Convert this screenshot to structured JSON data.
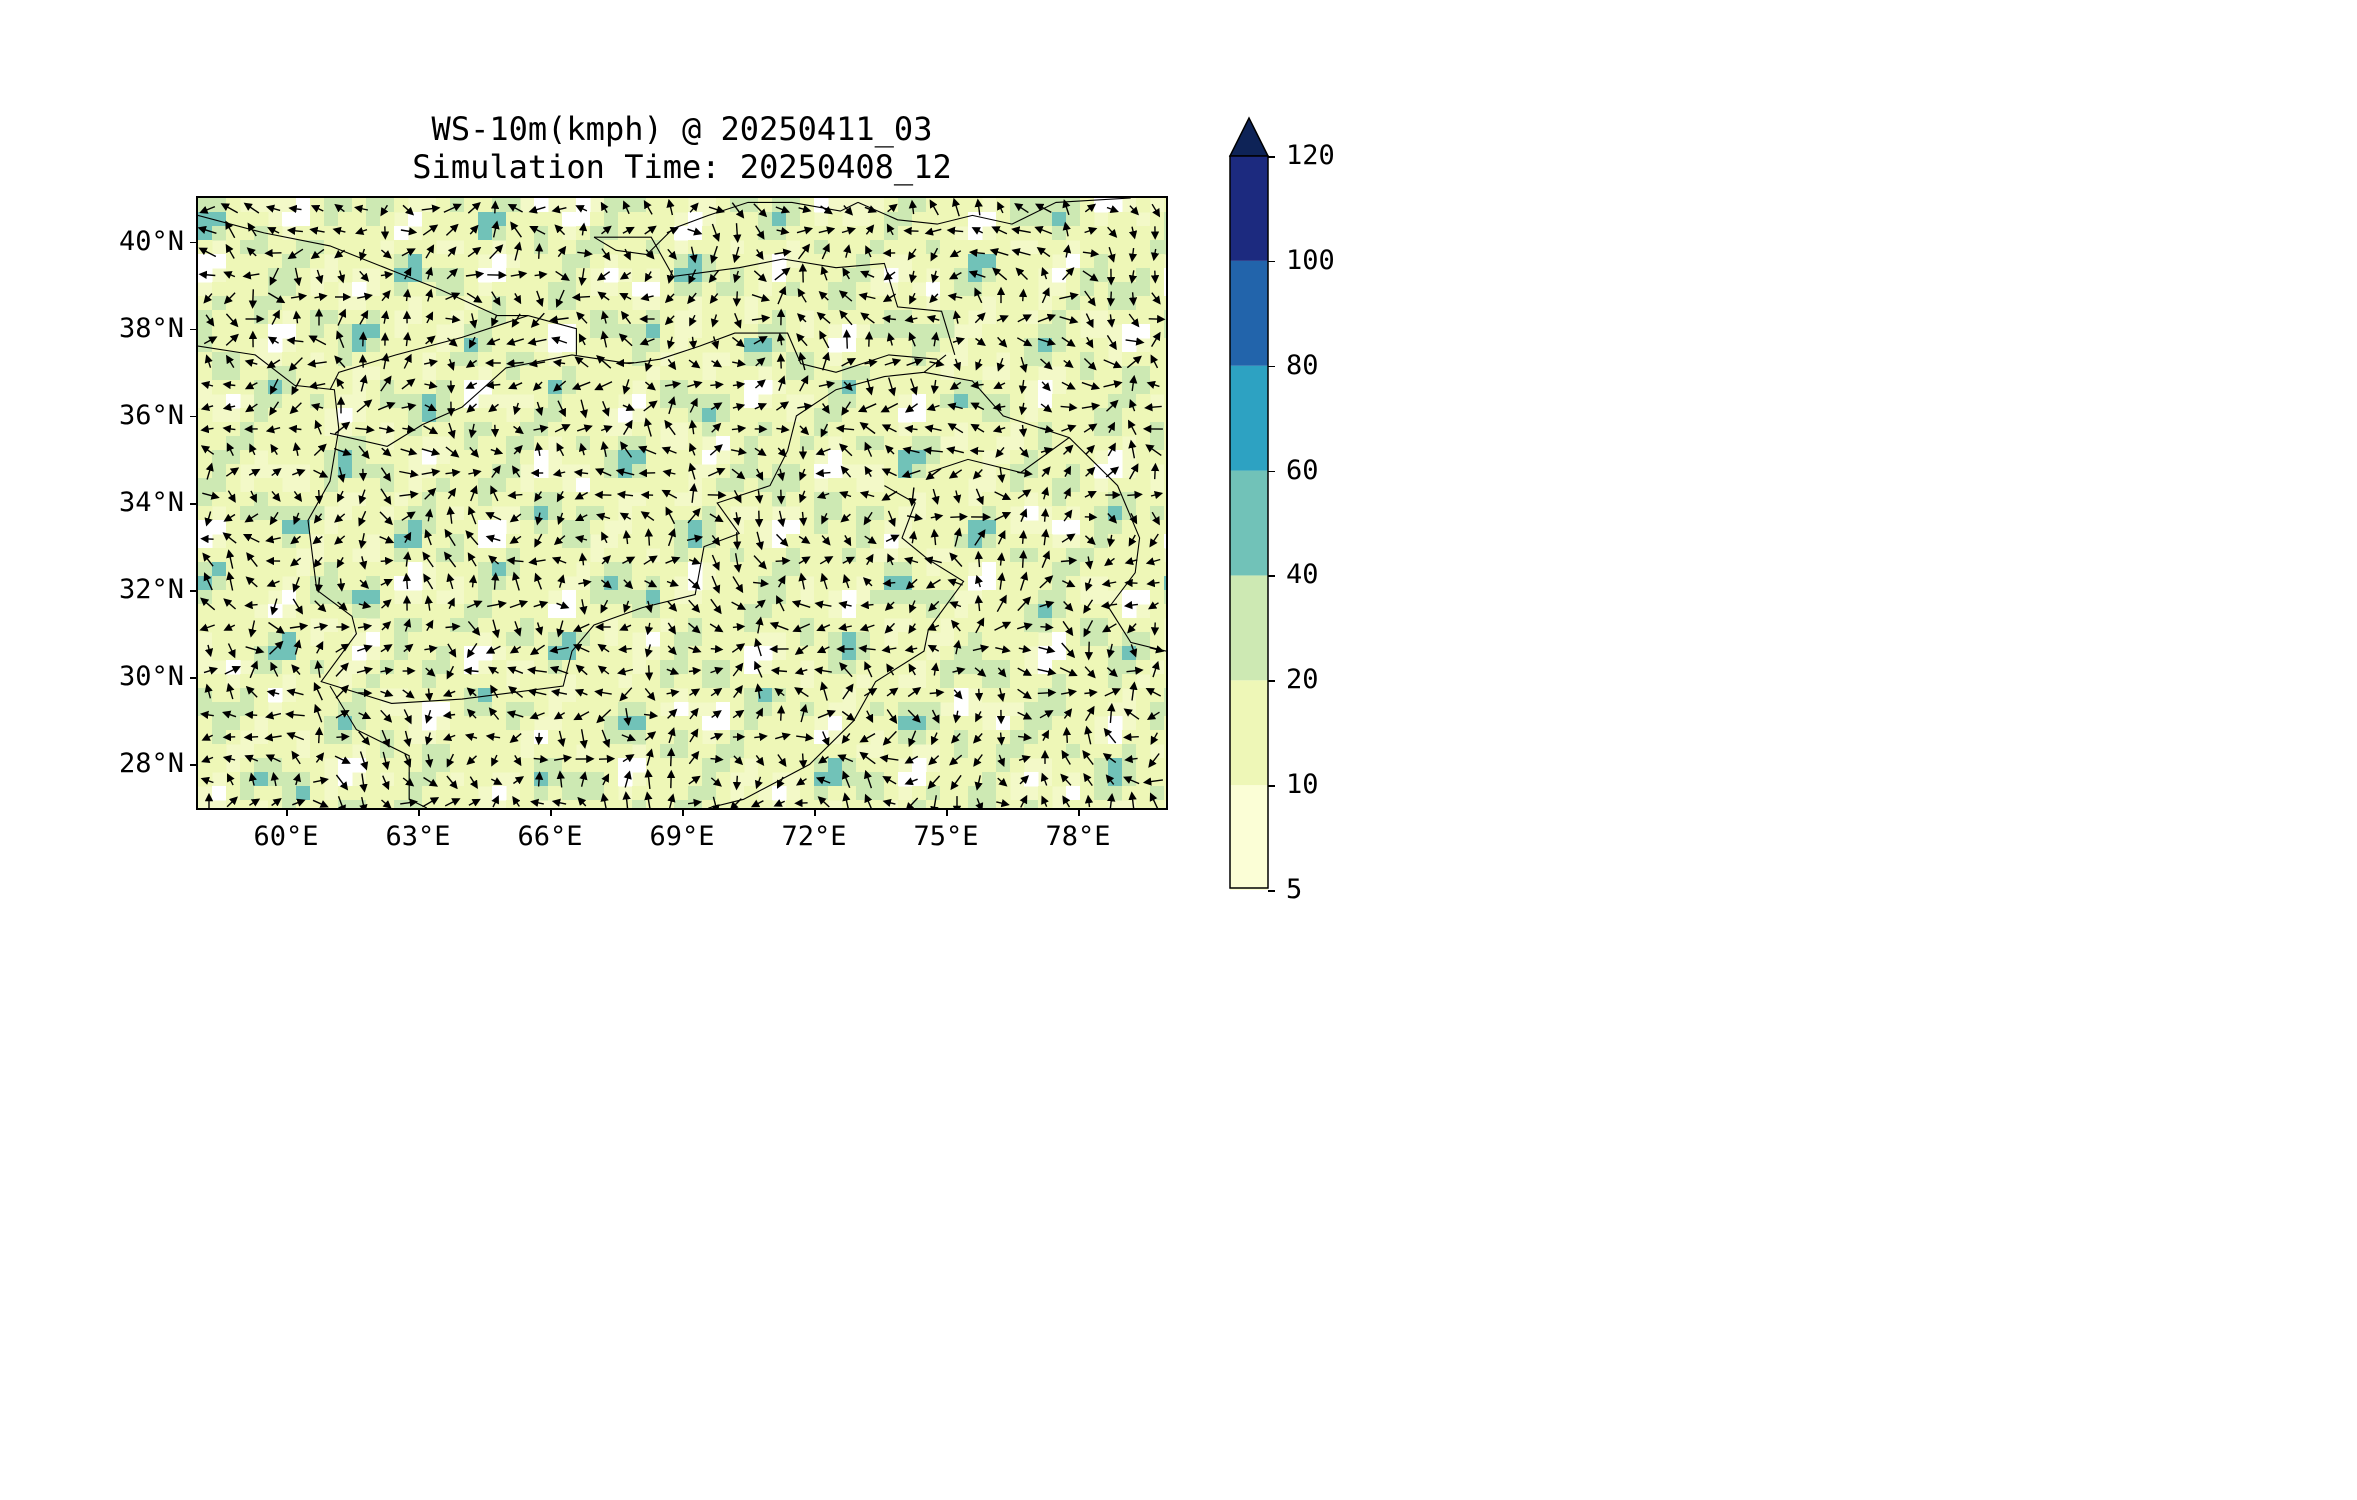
{
  "title": {
    "line1": "WS-10m(kmph) @ 20250411_03",
    "line2": "Simulation Time: 20250408_12"
  },
  "map": {
    "lon_range": [
      58.0,
      80.0
    ],
    "lat_range": [
      27.0,
      41.0
    ],
    "lat_ticks": [
      {
        "value": 40,
        "label": "40°N"
      },
      {
        "value": 38,
        "label": "38°N"
      },
      {
        "value": 36,
        "label": "36°N"
      },
      {
        "value": 34,
        "label": "34°N"
      },
      {
        "value": 32,
        "label": "32°N"
      },
      {
        "value": 30,
        "label": "30°N"
      },
      {
        "value": 28,
        "label": "28°N"
      }
    ],
    "lon_ticks": [
      {
        "value": 60,
        "label": "60°E"
      },
      {
        "value": 63,
        "label": "63°E"
      },
      {
        "value": 66,
        "label": "66°E"
      },
      {
        "value": 69,
        "label": "69°E"
      },
      {
        "value": 72,
        "label": "72°E"
      },
      {
        "value": 75,
        "label": "75°E"
      },
      {
        "value": 78,
        "label": "78°E"
      }
    ],
    "border_color": "#000000",
    "arrow_color": "#000000"
  },
  "colorbar": {
    "levels": [
      "5",
      "10",
      "20",
      "40",
      "60",
      "80",
      "100",
      "120"
    ],
    "colors": [
      "#fbfed6",
      "#eef7b7",
      "#cde9b3",
      "#71c2b8",
      "#2da2c2",
      "#2264ab",
      "#1c2a7f"
    ],
    "extend_color": "#0e2357"
  }
}
